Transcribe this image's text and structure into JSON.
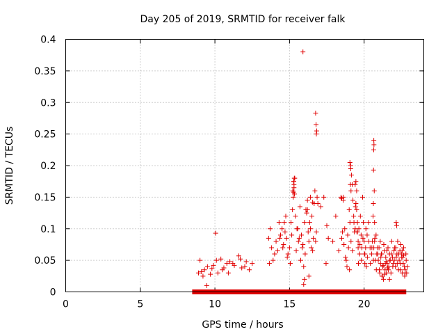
{
  "chart_data": {
    "type": "scatter",
    "title": "Day 205 of 2019, SRMTID for receiver falk",
    "xlabel": "GPS time / hours",
    "ylabel": "SRMTID / TECUs",
    "xlim": [
      0,
      24
    ],
    "ylim": [
      0,
      0.4
    ],
    "xticks": [
      0,
      5,
      10,
      15,
      20
    ],
    "xtick_labels": [
      "0",
      "5",
      "10",
      "15",
      "20"
    ],
    "yticks": [
      0,
      0.05,
      0.1,
      0.15,
      0.2,
      0.25,
      0.3,
      0.35,
      0.4
    ],
    "ytick_labels": [
      "0",
      "0.05",
      "0.1",
      "0.15",
      "0.2",
      "0.25",
      "0.3",
      "0.35",
      "0.4"
    ],
    "grid": true,
    "marker": "+",
    "marker_color": "#e00000",
    "series": [
      {
        "name": "SRMTID",
        "x": [
          8.9,
          9.0,
          9.1,
          9.3,
          9.5,
          9.7,
          9.9,
          10.1,
          10.2,
          10.4,
          10.6,
          10.8,
          11.0,
          11.3,
          11.6,
          11.8,
          12.1,
          12.5,
          9.2,
          9.8,
          10.5,
          11.2,
          12.0,
          10.05,
          11.7,
          12.3,
          9.45,
          10.9,
          13.6,
          13.7,
          13.8,
          14.0,
          14.1,
          14.3,
          14.4,
          14.5,
          14.6,
          14.7,
          14.8,
          14.9,
          15.0,
          15.1,
          15.2,
          15.25,
          15.3,
          15.35,
          15.4,
          15.5,
          15.6,
          15.7,
          15.8,
          15.9,
          16.0,
          16.1,
          16.2,
          16.3,
          16.4,
          16.5,
          16.6,
          16.7,
          16.8,
          16.9,
          13.65,
          13.9,
          14.2,
          14.35,
          14.55,
          14.65,
          14.75,
          14.85,
          15.05,
          15.15,
          15.22,
          15.28,
          15.33,
          15.45,
          15.55,
          15.65,
          15.75,
          15.85,
          15.95,
          16.05,
          16.15,
          16.25,
          16.35,
          16.45,
          16.55,
          16.65,
          16.75,
          16.85,
          15.9,
          16.75,
          16.78,
          16.82,
          16.8,
          15.28,
          15.3,
          15.32,
          15.27,
          16.4,
          16.55,
          16.2,
          15.95,
          16.0,
          16.3,
          17.5,
          17.6,
          17.3,
          17.1,
          17.45,
          17.9,
          18.1,
          18.3,
          18.5,
          18.6,
          18.7,
          18.8,
          18.9,
          19.0,
          19.05,
          19.1,
          19.15,
          19.2,
          19.25,
          19.3,
          19.35,
          19.4,
          19.45,
          19.5,
          19.55,
          19.6,
          19.65,
          19.7,
          19.75,
          19.8,
          19.85,
          19.9,
          19.95,
          20.0,
          20.05,
          20.1,
          20.2,
          20.3,
          20.4,
          20.5,
          20.55,
          20.6,
          20.65,
          20.7,
          20.75,
          20.8,
          20.85,
          20.9,
          18.45,
          18.55,
          18.65,
          18.75,
          18.85,
          18.95,
          19.02,
          19.12,
          19.22,
          19.32,
          19.42,
          19.52,
          19.62,
          19.72,
          19.82,
          19.92,
          20.02,
          20.12,
          20.22,
          20.32,
          20.42,
          20.52,
          20.62,
          20.72,
          20.82,
          20.92,
          19.05,
          19.1,
          19.08,
          19.12,
          19.45,
          19.5,
          20.65,
          20.66,
          20.64,
          20.63,
          20.68,
          20.62,
          20.7,
          18.5,
          18.6,
          19.4,
          19.55,
          19.6,
          20.05,
          20.15,
          20.95,
          21.0,
          21.05,
          21.1,
          21.15,
          21.2,
          21.25,
          21.3,
          21.35,
          21.4,
          21.45,
          21.5,
          21.55,
          21.6,
          21.65,
          21.7,
          21.75,
          21.8,
          21.85,
          21.9,
          21.95,
          22.0,
          22.05,
          22.1,
          22.15,
          22.2,
          22.25,
          22.3,
          22.35,
          22.4,
          22.45,
          22.5,
          22.55,
          22.6,
          22.65,
          22.7,
          22.75,
          22.8,
          22.85,
          22.9,
          21.02,
          21.12,
          21.22,
          21.32,
          21.42,
          21.52,
          21.62,
          21.72,
          21.82,
          21.92,
          22.02,
          22.12,
          22.22,
          22.32,
          22.42,
          22.52,
          22.62,
          22.72,
          22.82,
          21.08,
          21.18,
          21.28,
          21.38,
          21.48,
          21.58,
          22.15,
          22.18,
          21.7,
          22.45,
          22.55,
          22.65,
          22.75
        ],
        "y": [
          0.03,
          0.05,
          0.032,
          0.035,
          0.04,
          0.028,
          0.042,
          0.05,
          0.03,
          0.052,
          0.038,
          0.045,
          0.048,
          0.042,
          0.057,
          0.038,
          0.048,
          0.045,
          0.025,
          0.037,
          0.035,
          0.045,
          0.04,
          0.093,
          0.052,
          0.035,
          0.01,
          0.03,
          0.085,
          0.1,
          0.07,
          0.06,
          0.08,
          0.11,
          0.09,
          0.1,
          0.075,
          0.095,
          0.085,
          0.06,
          0.07,
          0.11,
          0.13,
          0.15,
          0.17,
          0.18,
          0.12,
          0.1,
          0.08,
          0.135,
          0.09,
          0.075,
          0.11,
          0.13,
          0.145,
          0.08,
          0.1,
          0.12,
          0.085,
          0.16,
          0.095,
          0.14,
          0.045,
          0.05,
          0.065,
          0.085,
          0.07,
          0.11,
          0.12,
          0.055,
          0.045,
          0.09,
          0.16,
          0.175,
          0.155,
          0.065,
          0.1,
          0.085,
          0.05,
          0.07,
          0.04,
          0.06,
          0.125,
          0.095,
          0.11,
          0.07,
          0.065,
          0.14,
          0.08,
          0.15,
          0.38,
          0.283,
          0.265,
          0.255,
          0.25,
          0.175,
          0.165,
          0.18,
          0.158,
          0.15,
          0.142,
          0.13,
          0.012,
          0.02,
          0.025,
          0.105,
          0.085,
          0.15,
          0.135,
          0.045,
          0.08,
          0.12,
          0.065,
          0.085,
          0.15,
          0.1,
          0.05,
          0.09,
          0.13,
          0.11,
          0.2,
          0.185,
          0.17,
          0.145,
          0.12,
          0.095,
          0.17,
          0.14,
          0.13,
          0.11,
          0.08,
          0.1,
          0.06,
          0.12,
          0.09,
          0.07,
          0.15,
          0.11,
          0.08,
          0.06,
          0.07,
          0.09,
          0.11,
          0.07,
          0.06,
          0.08,
          0.12,
          0.07,
          0.08,
          0.05,
          0.09,
          0.06,
          0.07,
          0.15,
          0.095,
          0.075,
          0.055,
          0.04,
          0.07,
          0.035,
          0.08,
          0.065,
          0.11,
          0.135,
          0.095,
          0.045,
          0.075,
          0.05,
          0.085,
          0.06,
          0.1,
          0.055,
          0.08,
          0.045,
          0.07,
          0.05,
          0.085,
          0.035,
          0.06,
          0.205,
          0.195,
          0.17,
          0.16,
          0.175,
          0.16,
          0.24,
          0.233,
          0.225,
          0.193,
          0.16,
          0.14,
          0.11,
          0.148,
          0.145,
          0.1,
          0.095,
          0.07,
          0.045,
          0.04,
          0.05,
          0.07,
          0.03,
          0.045,
          0.06,
          0.025,
          0.04,
          0.02,
          0.065,
          0.035,
          0.055,
          0.03,
          0.045,
          0.07,
          0.04,
          0.06,
          0.05,
          0.03,
          0.08,
          0.055,
          0.045,
          0.065,
          0.07,
          0.04,
          0.055,
          0.06,
          0.08,
          0.035,
          0.05,
          0.065,
          0.045,
          0.06,
          0.03,
          0.055,
          0.07,
          0.04,
          0.035,
          0.06,
          0.03,
          0.04,
          0.035,
          0.055,
          0.025,
          0.075,
          0.045,
          0.065,
          0.035,
          0.05,
          0.06,
          0.04,
          0.05,
          0.07,
          0.045,
          0.06,
          0.035,
          0.055,
          0.045,
          0.025,
          0.05,
          0.08,
          0.06,
          0.042,
          0.028,
          0.048,
          0.038,
          0.11,
          0.105,
          0.02,
          0.075,
          0.065,
          0.058,
          0.03
        ],
        "zeros_x_range": [
          8.5,
          22.8
        ]
      }
    ]
  }
}
